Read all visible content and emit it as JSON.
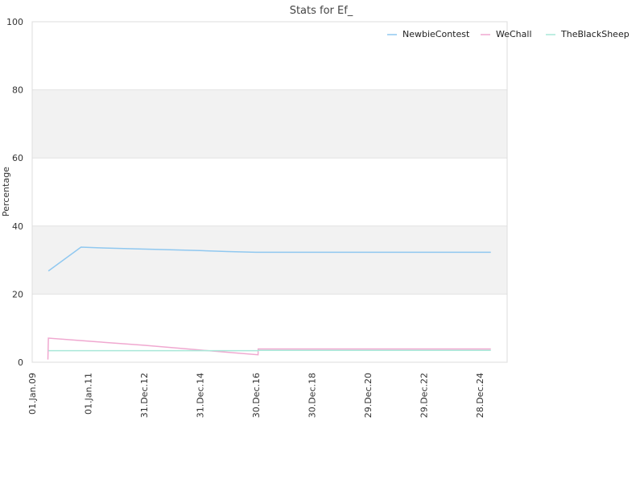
{
  "chart_data": {
    "type": "line",
    "title": "Stats for Ef_",
    "xlabel": "",
    "ylabel": "Percentage",
    "ylim": [
      0,
      100
    ],
    "yticks": [
      "0",
      "20",
      "40",
      "60",
      "80",
      "100"
    ],
    "xticks": [
      "01.Jan.09",
      "01.Jan.11",
      "31.Dec.12",
      "31.Dec.14",
      "30.Dec.16",
      "30.Dec.18",
      "29.Dec.20",
      "29.Dec.22",
      "28.Dec.24"
    ],
    "x_axis_type": "date",
    "x_range": [
      "2009-01-01",
      "2026-01-01"
    ],
    "grid": "horizontal bands",
    "legend_position": "top-right",
    "series": [
      {
        "name": "NewbieContest",
        "color": "#90c8f0",
        "points": [
          [
            "2009-08-01",
            26.8
          ],
          [
            "2010-10-01",
            33.8
          ],
          [
            "2011-06-01",
            33.6
          ],
          [
            "2012-09-01",
            33.3
          ],
          [
            "2013-09-01",
            33.1
          ],
          [
            "2015-01-01",
            32.8
          ],
          [
            "2016-01-01",
            32.5
          ],
          [
            "2017-01-01",
            32.3
          ],
          [
            "2025-06-01",
            32.3
          ]
        ]
      },
      {
        "name": "WeChall",
        "color": "#f0a8d0",
        "points": [
          [
            "2009-07-25",
            0.8
          ],
          [
            "2009-08-01",
            7.1
          ],
          [
            "2011-01-01",
            6.2
          ],
          [
            "2013-01-01",
            5.0
          ],
          [
            "2015-01-01",
            3.6
          ],
          [
            "2017-02-01",
            2.2
          ],
          [
            "2017-02-02",
            3.9
          ],
          [
            "2025-06-01",
            3.9
          ]
        ]
      },
      {
        "name": "TheBlackSheep",
        "color": "#a8e8d8",
        "points": [
          [
            "2009-08-01",
            3.4
          ],
          [
            "2017-02-01",
            3.4
          ],
          [
            "2017-02-02",
            3.5
          ],
          [
            "2025-06-01",
            3.5
          ]
        ]
      }
    ]
  }
}
